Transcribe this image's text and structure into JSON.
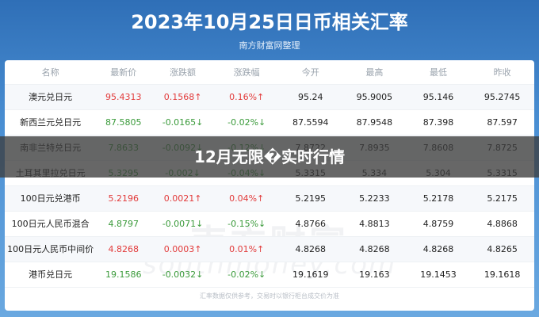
{
  "title": "2023年10月25日日币相关汇率",
  "subtitle": "南方财富网整理",
  "columns": [
    "名称",
    "最新价",
    "涨跌额",
    "涨跌幅",
    "今开",
    "最高",
    "最低",
    "昨收"
  ],
  "rows": [
    {
      "name": "澳元兑日元",
      "price": "95.4313",
      "chg": "0.1568↑",
      "pct": "0.16%↑",
      "open": "95.24",
      "high": "95.9005",
      "low": "95.146",
      "prev": "95.2745",
      "dir": "up"
    },
    {
      "name": "新西兰元兑日元",
      "price": "87.5805",
      "chg": "-0.0165↓",
      "pct": "-0.02%↓",
      "open": "87.5594",
      "high": "87.9548",
      "low": "87.398",
      "prev": "87.597",
      "dir": "down"
    },
    {
      "name": "南非兰特兑日元",
      "price": "7.8633",
      "chg": "-0.0092↓",
      "pct": "-0.12%↓",
      "open": "7.8722",
      "high": "7.8935",
      "low": "7.8608",
      "prev": "7.8725",
      "dir": "down"
    },
    {
      "name": "土耳其里拉兑日元",
      "price": "5.3295",
      "chg": "-0.002↓",
      "pct": "-0.04%↓",
      "open": "5.3315",
      "high": "5.334",
      "low": "5.304",
      "prev": "5.3315",
      "dir": "down"
    },
    {
      "name": "100日元兑港币",
      "price": "5.2196",
      "chg": "0.0021↑",
      "pct": "0.04%↑",
      "open": "5.2195",
      "high": "5.2233",
      "low": "5.2178",
      "prev": "5.2175",
      "dir": "up"
    },
    {
      "name": "100日元人民币混合",
      "price": "4.8797",
      "chg": "-0.0071↓",
      "pct": "-0.15%↓",
      "open": "4.8766",
      "high": "4.8813",
      "low": "4.8759",
      "prev": "4.8868",
      "dir": "down"
    },
    {
      "name": "100日元人民币中间价",
      "price": "4.8268",
      "chg": "0.0003↑",
      "pct": "0.01%↑",
      "open": "4.8268",
      "high": "4.8268",
      "low": "4.8268",
      "prev": "4.8265",
      "dir": "up"
    },
    {
      "name": "港币兑日元",
      "price": "19.1586",
      "chg": "-0.0032↓",
      "pct": "-0.02%↓",
      "open": "19.1619",
      "high": "19.163",
      "low": "19.1453",
      "prev": "19.1618",
      "dir": "down"
    }
  ],
  "watermark": "南方财富",
  "watermark_url": "southmoney.com",
  "footer": "汇率数据仅供参考，交易时以银行柜台成交价为准",
  "banner": "12月无限�实时行情",
  "colors": {
    "up": "#e23a3a",
    "down": "#3a9a3a",
    "header_bg": "#2f6fb7"
  }
}
